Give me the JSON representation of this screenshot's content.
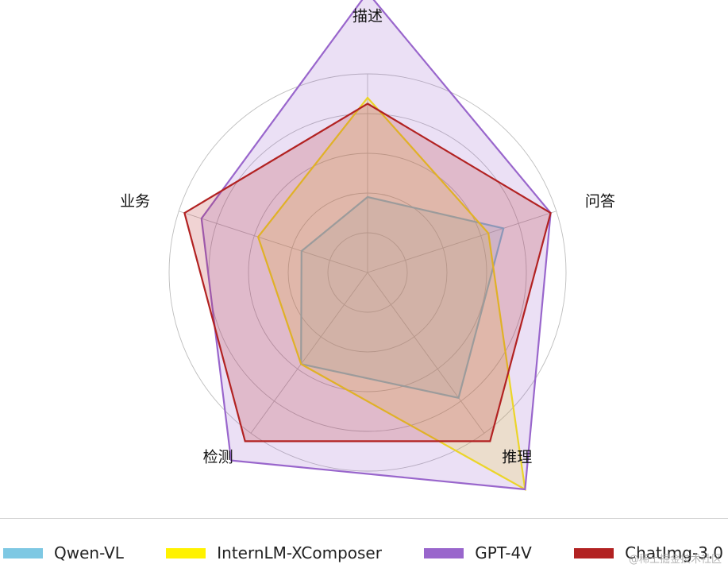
{
  "chart_data": {
    "type": "radar",
    "title": "",
    "axes": [
      "描述",
      "问答",
      "推理",
      "检测",
      "业务"
    ],
    "rmax": 100,
    "grid_levels": [
      20,
      40,
      60,
      80
    ],
    "grid": true,
    "legend_position": "bottom",
    "series": [
      {
        "name": "Qwen-VL",
        "color": "#7EC8E3",
        "values": [
          38,
          72,
          78,
          57,
          35
        ]
      },
      {
        "name": "InternLM-XComposer",
        "color": "#FFF200",
        "values": [
          88,
          64,
          135,
          57,
          58
        ]
      },
      {
        "name": "GPT-4V",
        "color": "#9966CC",
        "values": [
          141,
          97,
          135,
          117,
          88
        ]
      },
      {
        "name": "ChatImg-3.0",
        "color": "#B22222",
        "values": [
          85,
          97,
          105,
          105,
          97
        ]
      }
    ]
  },
  "watermark": "@稀土掘金技术社区"
}
